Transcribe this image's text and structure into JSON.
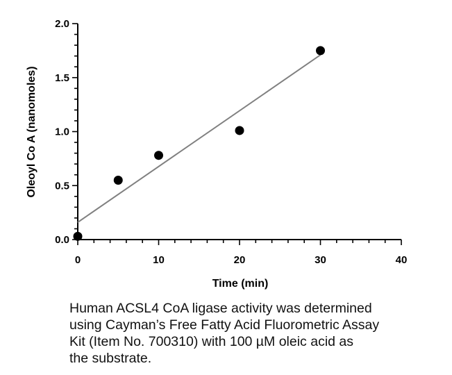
{
  "chart_data": {
    "type": "scatter",
    "xlabel": "Time (min)",
    "ylabel": "Oleoyl Co A (nanomoles)",
    "xlim": [
      0,
      40
    ],
    "ylim": [
      0,
      2.0
    ],
    "xticks": [
      "0",
      "10",
      "20",
      "30",
      "40"
    ],
    "yticks": [
      "0.0",
      "0.5",
      "1.0",
      "1.5",
      "2.0"
    ],
    "points": [
      {
        "x": 0,
        "y": 0.03
      },
      {
        "x": 5,
        "y": 0.55
      },
      {
        "x": 10,
        "y": 0.78
      },
      {
        "x": 20,
        "y": 1.01
      },
      {
        "x": 30,
        "y": 1.75
      }
    ],
    "fit_line": {
      "x": [
        0,
        30
      ],
      "y": [
        0.16,
        1.71
      ]
    },
    "grid": false,
    "marker_color": "#000000",
    "line_color": "#808080"
  },
  "caption": {
    "lines": [
      "Human ACSL4 CoA ligase activity was determined",
      "using Cayman’s Free Fatty Acid Fluorometric Assay",
      "Kit (Item No. 700310) with 100 µM oleic acid as",
      "the substrate."
    ]
  }
}
